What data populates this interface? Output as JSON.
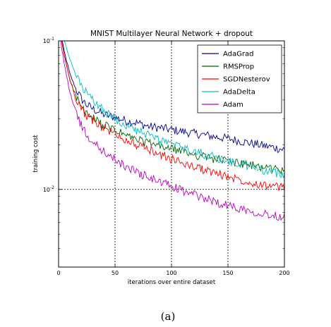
{
  "chart_data": {
    "type": "line",
    "title": "MNIST Multilayer Neural Network + dropout",
    "xlabel": "iterations over entire dataset",
    "ylabel": "training cost",
    "xlim": [
      0,
      200
    ],
    "ylim": [
      0.003,
      0.1
    ],
    "yscale": "log",
    "grid": true,
    "legend_position": "top-right",
    "xticks": [
      0,
      50,
      100,
      150,
      200
    ],
    "yticks": [
      {
        "value": 0.1,
        "base": "10",
        "exp": "-1"
      },
      {
        "value": 0.01,
        "base": "10",
        "exp": "-2"
      }
    ],
    "series": [
      {
        "name": "AdaGrad",
        "color": "#00008b",
        "x": [
          1,
          5,
          10,
          15,
          20,
          25,
          30,
          40,
          50,
          60,
          70,
          80,
          90,
          100,
          110,
          120,
          130,
          140,
          150,
          160,
          170,
          180,
          190,
          200
        ],
        "y": [
          0.12,
          0.085,
          0.06,
          0.048,
          0.041,
          0.037,
          0.035,
          0.032,
          0.0305,
          0.029,
          0.028,
          0.0265,
          0.026,
          0.0252,
          0.0245,
          0.0238,
          0.0232,
          0.0225,
          0.022,
          0.0212,
          0.0205,
          0.0198,
          0.0192,
          0.0185
        ]
      },
      {
        "name": "RMSProp",
        "color": "#006400",
        "x": [
          1,
          5,
          10,
          15,
          20,
          25,
          30,
          40,
          50,
          60,
          70,
          80,
          90,
          100,
          110,
          120,
          130,
          140,
          150,
          160,
          170,
          180,
          190,
          200
        ],
        "y": [
          0.12,
          0.08,
          0.055,
          0.043,
          0.036,
          0.032,
          0.03,
          0.027,
          0.025,
          0.023,
          0.0215,
          0.0205,
          0.0195,
          0.0188,
          0.018,
          0.0172,
          0.0165,
          0.016,
          0.0155,
          0.015,
          0.0145,
          0.0142,
          0.0138,
          0.0135
        ]
      },
      {
        "name": "SGDNesterov",
        "color": "#ff0000",
        "x": [
          1,
          5,
          10,
          15,
          20,
          25,
          30,
          40,
          50,
          60,
          70,
          80,
          90,
          100,
          110,
          120,
          130,
          140,
          150,
          160,
          170,
          180,
          190,
          200
        ],
        "y": [
          0.12,
          0.08,
          0.055,
          0.042,
          0.035,
          0.031,
          0.029,
          0.026,
          0.0235,
          0.0215,
          0.0198,
          0.0185,
          0.0172,
          0.016,
          0.015,
          0.0142,
          0.0135,
          0.0128,
          0.0122,
          0.0117,
          0.0112,
          0.0108,
          0.0105,
          0.0102
        ]
      },
      {
        "name": "AdaDelta",
        "color": "#00bfbf",
        "x": [
          1,
          5,
          10,
          15,
          20,
          25,
          30,
          40,
          50,
          60,
          70,
          80,
          90,
          100,
          110,
          120,
          130,
          140,
          150,
          160,
          170,
          180,
          190,
          200
        ],
        "y": [
          0.14,
          0.1,
          0.075,
          0.06,
          0.05,
          0.044,
          0.04,
          0.034,
          0.03,
          0.027,
          0.0248,
          0.023,
          0.0215,
          0.0202,
          0.019,
          0.018,
          0.0172,
          0.0163,
          0.0155,
          0.0148,
          0.0142,
          0.0136,
          0.013,
          0.0126
        ]
      },
      {
        "name": "Adam",
        "color": "#bf00bf",
        "x": [
          1,
          5,
          10,
          15,
          20,
          25,
          30,
          40,
          50,
          60,
          70,
          80,
          90,
          100,
          110,
          120,
          130,
          140,
          150,
          160,
          170,
          180,
          190,
          200
        ],
        "y": [
          0.11,
          0.07,
          0.045,
          0.034,
          0.027,
          0.023,
          0.021,
          0.018,
          0.0158,
          0.0142,
          0.013,
          0.012,
          0.0112,
          0.0105,
          0.0098,
          0.0092,
          0.0087,
          0.0082,
          0.0078,
          0.0075,
          0.0072,
          0.0069,
          0.0067,
          0.0065
        ]
      }
    ]
  },
  "caption": "(a)"
}
